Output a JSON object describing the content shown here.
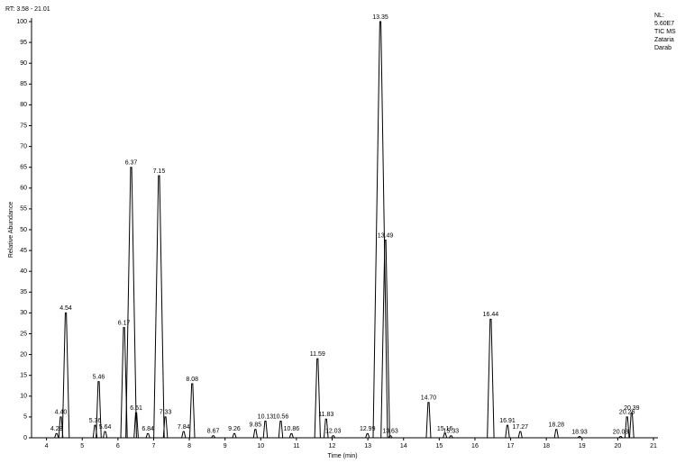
{
  "chart_data": {
    "type": "chromatogram",
    "range_label": "RT: 3.58 - 21.01",
    "info": [
      "NL:",
      "5.60E7",
      "TIC MS",
      "Zataria",
      "Darab"
    ],
    "ylabel": "Relative Abundance",
    "xlabel": "Time (min)",
    "xlim": [
      3.58,
      21.01
    ],
    "ylim": [
      0,
      100
    ],
    "xticks": [
      4,
      5,
      6,
      7,
      8,
      9,
      10,
      11,
      12,
      13,
      14,
      15,
      16,
      17,
      18,
      19,
      20,
      21
    ],
    "yticks": [
      0,
      5,
      10,
      15,
      20,
      25,
      30,
      35,
      40,
      45,
      50,
      55,
      60,
      65,
      70,
      75,
      80,
      85,
      90,
      95,
      100
    ],
    "color": "#000000",
    "x": [
      4.28,
      4.4,
      4.54,
      5.36,
      5.46,
      5.64,
      6.17,
      6.37,
      6.51,
      6.84,
      7.15,
      7.33,
      7.84,
      8.08,
      8.67,
      9.26,
      9.85,
      10.13,
      10.56,
      10.86,
      11.59,
      11.83,
      12.03,
      12.99,
      13.35,
      13.49,
      13.63,
      14.7,
      15.16,
      15.33,
      16.44,
      16.91,
      17.27,
      18.28,
      18.93,
      20.08,
      20.26,
      20.39
    ],
    "x_labels": [
      "4.28",
      "4.40",
      "4.54",
      "5.36",
      "5.46",
      "5.64",
      "6.17",
      "6.37",
      "6.51",
      "6.84",
      "7.15",
      "7.33",
      "7.84",
      "8.08",
      "8.67",
      "9.26",
      "9.85",
      "10.13",
      "10.56",
      "10.86",
      "11.59",
      "11.83",
      "12.03",
      "12.99",
      "13.35",
      "13.49",
      "13.63",
      "14.70",
      "15.16",
      "15.33",
      "16.44",
      "16.91",
      "17.27",
      "18.28",
      "18.93",
      "20.08",
      "20.26",
      "20.39"
    ],
    "values": [
      1,
      5,
      30,
      3,
      13.5,
      1.5,
      26.5,
      65,
      6,
      1,
      63,
      5,
      1.5,
      13,
      0.5,
      1,
      2,
      4,
      4,
      1,
      19,
      4.5,
      0.5,
      1,
      100,
      47.5,
      0.5,
      8.5,
      1,
      0.5,
      28.5,
      3,
      1.5,
      2,
      0.3,
      0.3,
      5,
      6
    ]
  }
}
